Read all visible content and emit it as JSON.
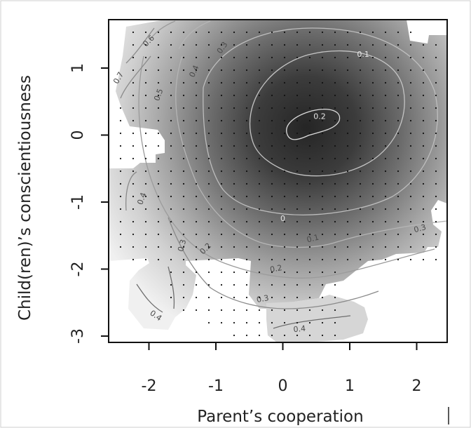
{
  "chart_data": {
    "type": "heatmap",
    "subtype": "filled-contour",
    "xlabel": "Parent’s cooperation",
    "ylabel": "Child(ren)’s conscientiousness",
    "xlim": [
      -2.6,
      2.5
    ],
    "ylim": [
      -3.15,
      1.75
    ],
    "x_ticks": [
      -2,
      -1,
      0,
      1,
      2
    ],
    "y_ticks": [
      -3,
      -2,
      -1,
      0,
      1
    ],
    "colormap": {
      "low": "#2a2a2a",
      "high": "#f4f4f4"
    },
    "surface_center": [
      0.35,
      0.1
    ],
    "contour_levels": [
      {
        "label": "0.7",
        "x": -2.45,
        "y": 0.85,
        "angle": -60
      },
      {
        "label": "0.6",
        "x": -2.0,
        "y": 1.4,
        "angle": -45
      },
      {
        "label": "0.5",
        "x": -1.85,
        "y": 0.6,
        "angle": -70
      },
      {
        "label": "0.4",
        "x": -1.32,
        "y": 0.95,
        "angle": -65
      },
      {
        "label": "0.3",
        "x": -0.9,
        "y": 1.3,
        "angle": -55
      },
      {
        "label": "0.4",
        "x": -2.1,
        "y": -0.95,
        "angle": -70
      },
      {
        "label": "0.3",
        "x": -1.5,
        "y": -1.65,
        "angle": -75
      },
      {
        "label": "0.2",
        "x": -1.15,
        "y": -1.7,
        "angle": -45
      },
      {
        "label": "0",
        "x": 0.0,
        "y": -1.25,
        "angle": 0
      },
      {
        "label": "0.1",
        "x": 0.45,
        "y": -1.55,
        "angle": -15
      },
      {
        "label": "0.2",
        "x": -0.1,
        "y": -2.0,
        "angle": -10
      },
      {
        "label": "0.3",
        "x": -0.3,
        "y": -2.45,
        "angle": -10
      },
      {
        "label": "0.3",
        "x": 2.05,
        "y": -1.4,
        "angle": -15
      },
      {
        "label": "0.4",
        "x": -1.9,
        "y": -2.7,
        "angle": 35
      },
      {
        "label": "0.4",
        "x": 0.25,
        "y": -2.9,
        "angle": -5
      },
      {
        "label": "0.1",
        "x": 1.2,
        "y": 1.2,
        "angle": 0
      },
      {
        "label": "0.2",
        "x": 0.55,
        "y": 0.27,
        "angle": 0
      }
    ]
  }
}
